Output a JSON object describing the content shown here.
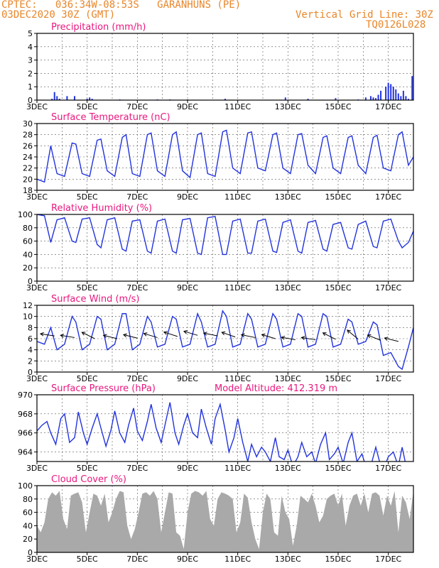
{
  "header": {
    "line1_left": "CPTEC:   036:34W-08:53S   GARANHUNS (PE)",
    "line2_left": "03DEC2020 30Z (GMT)",
    "line2_right": "Vertical Grid Line: 30Z",
    "line3_right": "TQ0126L028"
  },
  "colors": {
    "header": "#e8862a",
    "title": "#e8187e",
    "line": "#2233dd",
    "bar": "#2233dd",
    "cloud": "#a9a9a9"
  },
  "chart_data": [
    {
      "id": "precip",
      "type": "bar",
      "title": "Precipitation (mm/h)",
      "ylim": [
        0,
        5
      ],
      "yticks": [
        0,
        1,
        2,
        3,
        4,
        5
      ],
      "xticks": [
        "3DEC",
        "5DEC",
        "7DEC",
        "9DEC",
        "11DEC",
        "13DEC",
        "15DEC",
        "17DEC"
      ],
      "x": [
        3.6,
        3.7,
        3.8,
        3.9,
        4.2,
        4.5,
        5.0,
        5.1,
        5.2,
        6.3,
        7.8,
        8.3,
        9.0,
        10.5,
        12.9,
        13.8,
        14.9,
        15.8,
        16.1,
        16.3,
        16.4,
        16.5,
        16.6,
        16.7,
        16.9,
        17.0,
        17.1,
        17.2,
        17.3,
        17.4,
        17.5,
        17.6,
        17.7,
        17.8,
        17.95
      ],
      "values": [
        0.1,
        0.6,
        0.3,
        0.1,
        0.3,
        0.3,
        0.1,
        0.2,
        0.1,
        0.05,
        0.05,
        0.05,
        0.05,
        0.1,
        0.2,
        0.1,
        0.15,
        0.05,
        0.2,
        0.3,
        0.2,
        0.15,
        0.4,
        0.7,
        1.0,
        1.3,
        1.2,
        1.0,
        0.8,
        0.5,
        0.3,
        0.7,
        0.3,
        0.1,
        1.8
      ]
    },
    {
      "id": "temp",
      "type": "line",
      "title": "Surface Temperature (nC)",
      "ylim": [
        18,
        30
      ],
      "yticks": [
        18,
        20,
        22,
        24,
        26,
        28,
        30
      ],
      "xticks": [
        "3DEC",
        "5DEC",
        "7DEC",
        "9DEC",
        "11DEC",
        "13DEC",
        "15DEC",
        "17DEC"
      ],
      "x": [
        3.0,
        3.3,
        3.55,
        3.8,
        4.1,
        4.4,
        4.55,
        4.8,
        5.1,
        5.4,
        5.55,
        5.8,
        6.1,
        6.4,
        6.55,
        6.8,
        7.1,
        7.4,
        7.55,
        7.8,
        8.1,
        8.4,
        8.55,
        8.8,
        9.1,
        9.4,
        9.55,
        9.8,
        10.1,
        10.4,
        10.55,
        10.8,
        11.1,
        11.4,
        11.55,
        11.8,
        12.1,
        12.4,
        12.55,
        12.8,
        13.1,
        13.4,
        13.55,
        13.8,
        14.1,
        14.4,
        14.55,
        14.8,
        15.1,
        15.4,
        15.55,
        15.8,
        16.1,
        16.4,
        16.55,
        16.8,
        17.1,
        17.4,
        17.55,
        17.8,
        18.0
      ],
      "values": [
        20.0,
        19.5,
        26.0,
        21.0,
        20.5,
        26.5,
        26.3,
        21.0,
        20.5,
        27.0,
        27.2,
        21.5,
        20.5,
        27.5,
        28.0,
        21.0,
        20.5,
        28.0,
        28.3,
        21.5,
        20.5,
        28.0,
        28.5,
        21.5,
        20.3,
        28.0,
        28.3,
        21.0,
        20.5,
        28.5,
        28.8,
        22.0,
        21.0,
        28.3,
        28.5,
        22.0,
        21.5,
        28.0,
        28.3,
        22.0,
        21.0,
        28.0,
        28.2,
        22.5,
        21.0,
        27.5,
        27.8,
        22.0,
        21.0,
        27.5,
        27.8,
        22.5,
        21.0,
        27.5,
        27.9,
        22.0,
        21.5,
        28.0,
        28.5,
        22.5,
        24.0
      ]
    },
    {
      "id": "humidity",
      "type": "line",
      "title": "Relative Humidity (%)",
      "ylim": [
        0,
        100
      ],
      "yticks": [
        0,
        20,
        40,
        60,
        80,
        100
      ],
      "xticks": [
        "3DEC",
        "5DEC",
        "7DEC",
        "9DEC",
        "11DEC",
        "13DEC",
        "15DEC",
        "17DEC"
      ],
      "x": [
        3.0,
        3.3,
        3.55,
        3.8,
        4.1,
        4.4,
        4.55,
        4.8,
        5.1,
        5.4,
        5.55,
        5.8,
        6.1,
        6.4,
        6.55,
        6.8,
        7.1,
        7.4,
        7.55,
        7.8,
        8.1,
        8.4,
        8.55,
        8.8,
        9.1,
        9.4,
        9.55,
        9.8,
        10.1,
        10.4,
        10.55,
        10.8,
        11.1,
        11.4,
        11.55,
        11.8,
        12.1,
        12.4,
        12.55,
        12.8,
        13.1,
        13.4,
        13.55,
        13.8,
        14.1,
        14.4,
        14.55,
        14.8,
        15.1,
        15.4,
        15.55,
        15.8,
        16.1,
        16.4,
        16.55,
        16.8,
        17.1,
        17.4,
        17.55,
        17.8,
        18.0
      ],
      "values": [
        100,
        98,
        58,
        92,
        95,
        60,
        58,
        93,
        95,
        55,
        50,
        92,
        95,
        48,
        45,
        90,
        92,
        45,
        42,
        90,
        93,
        45,
        42,
        92,
        94,
        42,
        40,
        95,
        97,
        40,
        40,
        90,
        93,
        42,
        42,
        90,
        93,
        45,
        43,
        88,
        92,
        45,
        42,
        88,
        91,
        48,
        45,
        85,
        88,
        50,
        48,
        85,
        90,
        52,
        50,
        90,
        93,
        60,
        50,
        58,
        75
      ]
    },
    {
      "id": "wind",
      "type": "line",
      "title": "Surface Wind (m/s)",
      "ylim": [
        0,
        12
      ],
      "yticks": [
        0,
        2,
        4,
        6,
        8,
        10,
        12
      ],
      "xticks": [
        "3DEC",
        "5DEC",
        "7DEC",
        "9DEC",
        "11DEC",
        "13DEC",
        "15DEC",
        "17DEC"
      ],
      "x": [
        3.0,
        3.3,
        3.55,
        3.8,
        4.1,
        4.4,
        4.55,
        4.8,
        5.1,
        5.4,
        5.55,
        5.8,
        6.1,
        6.4,
        6.55,
        6.8,
        7.1,
        7.4,
        7.55,
        7.8,
        8.1,
        8.4,
        8.55,
        8.8,
        9.1,
        9.4,
        9.55,
        9.8,
        10.1,
        10.4,
        10.55,
        10.8,
        11.1,
        11.4,
        11.55,
        11.8,
        12.1,
        12.4,
        12.55,
        12.8,
        13.1,
        13.4,
        13.55,
        13.8,
        14.1,
        14.4,
        14.55,
        14.8,
        15.1,
        15.4,
        15.55,
        15.8,
        16.1,
        16.4,
        16.55,
        16.8,
        17.1,
        17.4,
        17.55,
        17.8,
        18.0
      ],
      "values": [
        5.5,
        5.0,
        8.0,
        4.0,
        5.0,
        10.0,
        9.0,
        4.0,
        5.0,
        10.0,
        9.5,
        4.0,
        5.0,
        10.5,
        10.5,
        4.0,
        5.0,
        10.0,
        9.0,
        4.5,
        5.0,
        10.0,
        9.5,
        4.5,
        5.0,
        10.5,
        9.0,
        4.5,
        5.0,
        11.0,
        10.0,
        4.5,
        5.0,
        10.5,
        9.5,
        4.5,
        5.0,
        10.5,
        9.5,
        4.5,
        5.0,
        10.5,
        10.0,
        4.5,
        5.0,
        10.5,
        10.0,
        4.5,
        5.0,
        9.5,
        9.0,
        5.0,
        5.5,
        9.0,
        8.5,
        3.0,
        3.5,
        1.0,
        0.5,
        4.5,
        8.0
      ],
      "arrows": [
        {
          "x": 3.7,
          "y": 6.5,
          "u": -4,
          "v": 0.6
        },
        {
          "x": 4.5,
          "y": 6.2,
          "u": -5,
          "v": 0.8
        },
        {
          "x": 5.3,
          "y": 6.0,
          "u": -3,
          "v": 1.5
        },
        {
          "x": 6.2,
          "y": 6.0,
          "u": -5,
          "v": 1.2
        },
        {
          "x": 7.0,
          "y": 6.1,
          "u": -4,
          "v": 1.0
        },
        {
          "x": 7.8,
          "y": 6.2,
          "u": -5,
          "v": 1.5
        },
        {
          "x": 8.6,
          "y": 6.4,
          "u": -4,
          "v": 1.3
        },
        {
          "x": 9.4,
          "y": 6.6,
          "u": -4,
          "v": 1.2
        },
        {
          "x": 10.2,
          "y": 6.5,
          "u": -5,
          "v": 1.0
        },
        {
          "x": 10.9,
          "y": 6.3,
          "u": -4,
          "v": 1.4
        },
        {
          "x": 11.7,
          "y": 6.2,
          "u": -5,
          "v": 1.0
        },
        {
          "x": 12.5,
          "y": 6.0,
          "u": -4,
          "v": 1.2
        },
        {
          "x": 13.3,
          "y": 5.8,
          "u": -5,
          "v": 0.9
        },
        {
          "x": 14.1,
          "y": 5.8,
          "u": -5,
          "v": 0.8
        },
        {
          "x": 14.9,
          "y": 5.9,
          "u": -4,
          "v": 2.0
        },
        {
          "x": 15.8,
          "y": 5.9,
          "u": -3,
          "v": 2.5
        },
        {
          "x": 16.7,
          "y": 5.7,
          "u": -3,
          "v": 1.2
        },
        {
          "x": 17.4,
          "y": 5.5,
          "u": -2,
          "v": 0.5
        }
      ]
    },
    {
      "id": "pressure",
      "type": "line",
      "title": "Surface Pressure (hPa)",
      "subtitle": "Model Altitude: 412.319 m",
      "ylim": [
        963,
        970
      ],
      "yticks": [
        964,
        966,
        968,
        970
      ],
      "xticks": [
        "3DEC",
        "5DEC",
        "7DEC",
        "9DEC",
        "11DEC",
        "13DEC",
        "15DEC",
        "17DEC"
      ],
      "x": [
        3.0,
        3.2,
        3.4,
        3.55,
        3.75,
        3.95,
        4.1,
        4.3,
        4.5,
        4.65,
        4.85,
        5.0,
        5.2,
        5.4,
        5.55,
        5.75,
        5.95,
        6.1,
        6.3,
        6.5,
        6.65,
        6.85,
        7.0,
        7.2,
        7.4,
        7.55,
        7.75,
        7.95,
        8.1,
        8.3,
        8.5,
        8.65,
        8.85,
        9.0,
        9.2,
        9.4,
        9.55,
        9.75,
        9.95,
        10.1,
        10.3,
        10.5,
        10.65,
        10.85,
        11.0,
        11.2,
        11.4,
        11.55,
        11.75,
        11.95,
        12.1,
        12.3,
        12.5,
        12.65,
        12.85,
        13.0,
        13.2,
        13.4,
        13.55,
        13.75,
        13.95,
        14.1,
        14.3,
        14.5,
        14.65,
        14.85,
        15.0,
        15.2,
        15.4,
        15.55,
        15.75,
        15.95,
        16.1,
        16.3,
        16.5,
        16.65,
        16.85,
        17.0,
        17.2,
        17.4,
        17.55,
        17.75,
        17.95
      ],
      "values": [
        966.2,
        966.8,
        967.2,
        966.0,
        964.8,
        967.5,
        968.0,
        965.0,
        965.5,
        968.2,
        966.0,
        964.8,
        966.5,
        968.0,
        966.5,
        964.6,
        966.3,
        968.3,
        966.0,
        965.0,
        966.8,
        968.6,
        966.2,
        965.2,
        967.2,
        969.0,
        966.5,
        965.0,
        966.8,
        969.2,
        966.0,
        964.8,
        966.8,
        968.0,
        966.0,
        965.5,
        968.5,
        966.5,
        964.8,
        967.5,
        969.0,
        966.3,
        964.0,
        965.5,
        967.5,
        965.0,
        963.0,
        964.8,
        963.5,
        964.5,
        964.0,
        963.0,
        965.5,
        963.5,
        963.2,
        964.2,
        962.5,
        963.5,
        965.0,
        963.5,
        964.0,
        962.8,
        964.8,
        966.0,
        963.2,
        963.8,
        964.5,
        962.8,
        965.0,
        966.0,
        963.0,
        963.8,
        962.5,
        962.5,
        964.5,
        963.0,
        962.5,
        963.5,
        964.0,
        962.5,
        964.5,
        962.0,
        963.0
      ]
    },
    {
      "id": "cloud",
      "type": "area",
      "title": "Cloud Cover (%)",
      "ylim": [
        0,
        100
      ],
      "yticks": [
        0,
        20,
        40,
        60,
        80,
        100
      ],
      "xticks": [
        "3DEC",
        "5DEC",
        "7DEC",
        "9DEC",
        "11DEC",
        "13DEC",
        "15DEC",
        "17DEC"
      ],
      "x": [
        3.0,
        3.15,
        3.3,
        3.45,
        3.6,
        3.75,
        3.9,
        4.05,
        4.2,
        4.35,
        4.5,
        4.65,
        4.8,
        4.95,
        5.1,
        5.25,
        5.4,
        5.55,
        5.7,
        5.85,
        6.0,
        6.15,
        6.3,
        6.45,
        6.6,
        6.75,
        6.9,
        7.05,
        7.2,
        7.35,
        7.5,
        7.65,
        7.8,
        7.95,
        8.1,
        8.25,
        8.4,
        8.55,
        8.7,
        8.85,
        9.0,
        9.15,
        9.3,
        9.45,
        9.6,
        9.75,
        9.9,
        10.05,
        10.2,
        10.35,
        10.5,
        10.65,
        10.8,
        10.95,
        11.1,
        11.25,
        11.4,
        11.55,
        11.7,
        11.85,
        12.0,
        12.15,
        12.3,
        12.45,
        12.6,
        12.75,
        12.9,
        13.05,
        13.2,
        13.35,
        13.5,
        13.65,
        13.8,
        13.95,
        14.1,
        14.25,
        14.4,
        14.55,
        14.7,
        14.85,
        15.0,
        15.15,
        15.3,
        15.45,
        15.6,
        15.75,
        15.9,
        16.05,
        16.2,
        16.35,
        16.5,
        16.65,
        16.8,
        16.95,
        17.1,
        17.25,
        17.4,
        17.55,
        17.7,
        17.85,
        18.0
      ],
      "values": [
        40,
        30,
        45,
        80,
        90,
        85,
        92,
        50,
        35,
        85,
        88,
        90,
        75,
        30,
        60,
        88,
        85,
        70,
        88,
        45,
        60,
        80,
        92,
        90,
        40,
        20,
        35,
        60,
        88,
        90,
        85,
        92,
        80,
        30,
        60,
        90,
        88,
        30,
        25,
        5,
        60,
        88,
        92,
        90,
        85,
        92,
        50,
        40,
        80,
        90,
        88,
        85,
        80,
        30,
        45,
        88,
        82,
        45,
        20,
        5,
        60,
        88,
        80,
        30,
        25,
        85,
        60,
        50,
        10,
        40,
        85,
        80,
        75,
        88,
        70,
        45,
        55,
        80,
        85,
        88,
        70,
        88,
        40,
        70,
        85,
        88,
        70,
        88,
        60,
        88,
        90,
        85,
        55,
        85,
        70,
        92,
        30,
        85,
        75,
        50,
        92
      ]
    }
  ]
}
